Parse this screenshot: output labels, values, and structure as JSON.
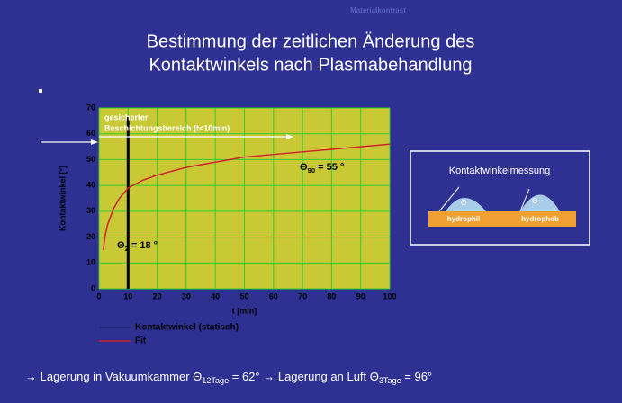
{
  "title": [
    "Bestimmung der zeitlichen Änderung des",
    "Kontaktwinkels nach Plasmabehandlung"
  ],
  "corner_note": "Materialkontrast",
  "inset": {
    "title": "Kontaktwinkelmessung",
    "left": "hydrophil",
    "right": "hydrophob",
    "angle": "Θ"
  },
  "bottom_note": [
    "→  Lagerung in Vakuumkammer Θ",
    "12Tage",
    " = 62°  →  Lagerung an Luft Θ",
    "3Tage",
    " = 96°"
  ],
  "chart_data": {
    "type": "line",
    "x_label": "t [min]",
    "y_label": "Kontaktwinkel [°]",
    "x": [
      1.5,
      2,
      3,
      5,
      7,
      10,
      15,
      20,
      30,
      40,
      50,
      60,
      70,
      80,
      90,
      100
    ],
    "series": [
      {
        "name": "Kontaktwinkel (statisch)",
        "color": "#1a1f6e",
        "values": [
          null,
          null,
          null,
          null,
          null,
          null,
          null,
          null,
          null,
          null,
          null,
          null,
          null,
          null,
          null,
          null
        ]
      },
      {
        "name": "Fit",
        "color": "#d0202e",
        "values": [
          15,
          20,
          25,
          31,
          35,
          39,
          42,
          44,
          47,
          49,
          51,
          52,
          53,
          54,
          55,
          56
        ]
      }
    ],
    "xlim": [
      0,
      100
    ],
    "xticks": [
      0,
      10,
      20,
      30,
      40,
      50,
      60,
      70,
      80,
      90,
      100
    ],
    "ylim": [
      0,
      70
    ],
    "yticks": [
      0,
      10,
      20,
      30,
      40,
      50,
      60,
      70
    ],
    "grid": true,
    "grid_color": "#33cc33",
    "plot_color": "#c9c936",
    "marker_x": 10,
    "annotations": {
      "region": [
        "gesicherter",
        "Beschichtungsbereich (t<10min)"
      ],
      "theta90": [
        "Θ",
        "90",
        " = 55 °"
      ],
      "theta2": [
        "Θ",
        "2",
        " = 18 °"
      ]
    }
  }
}
